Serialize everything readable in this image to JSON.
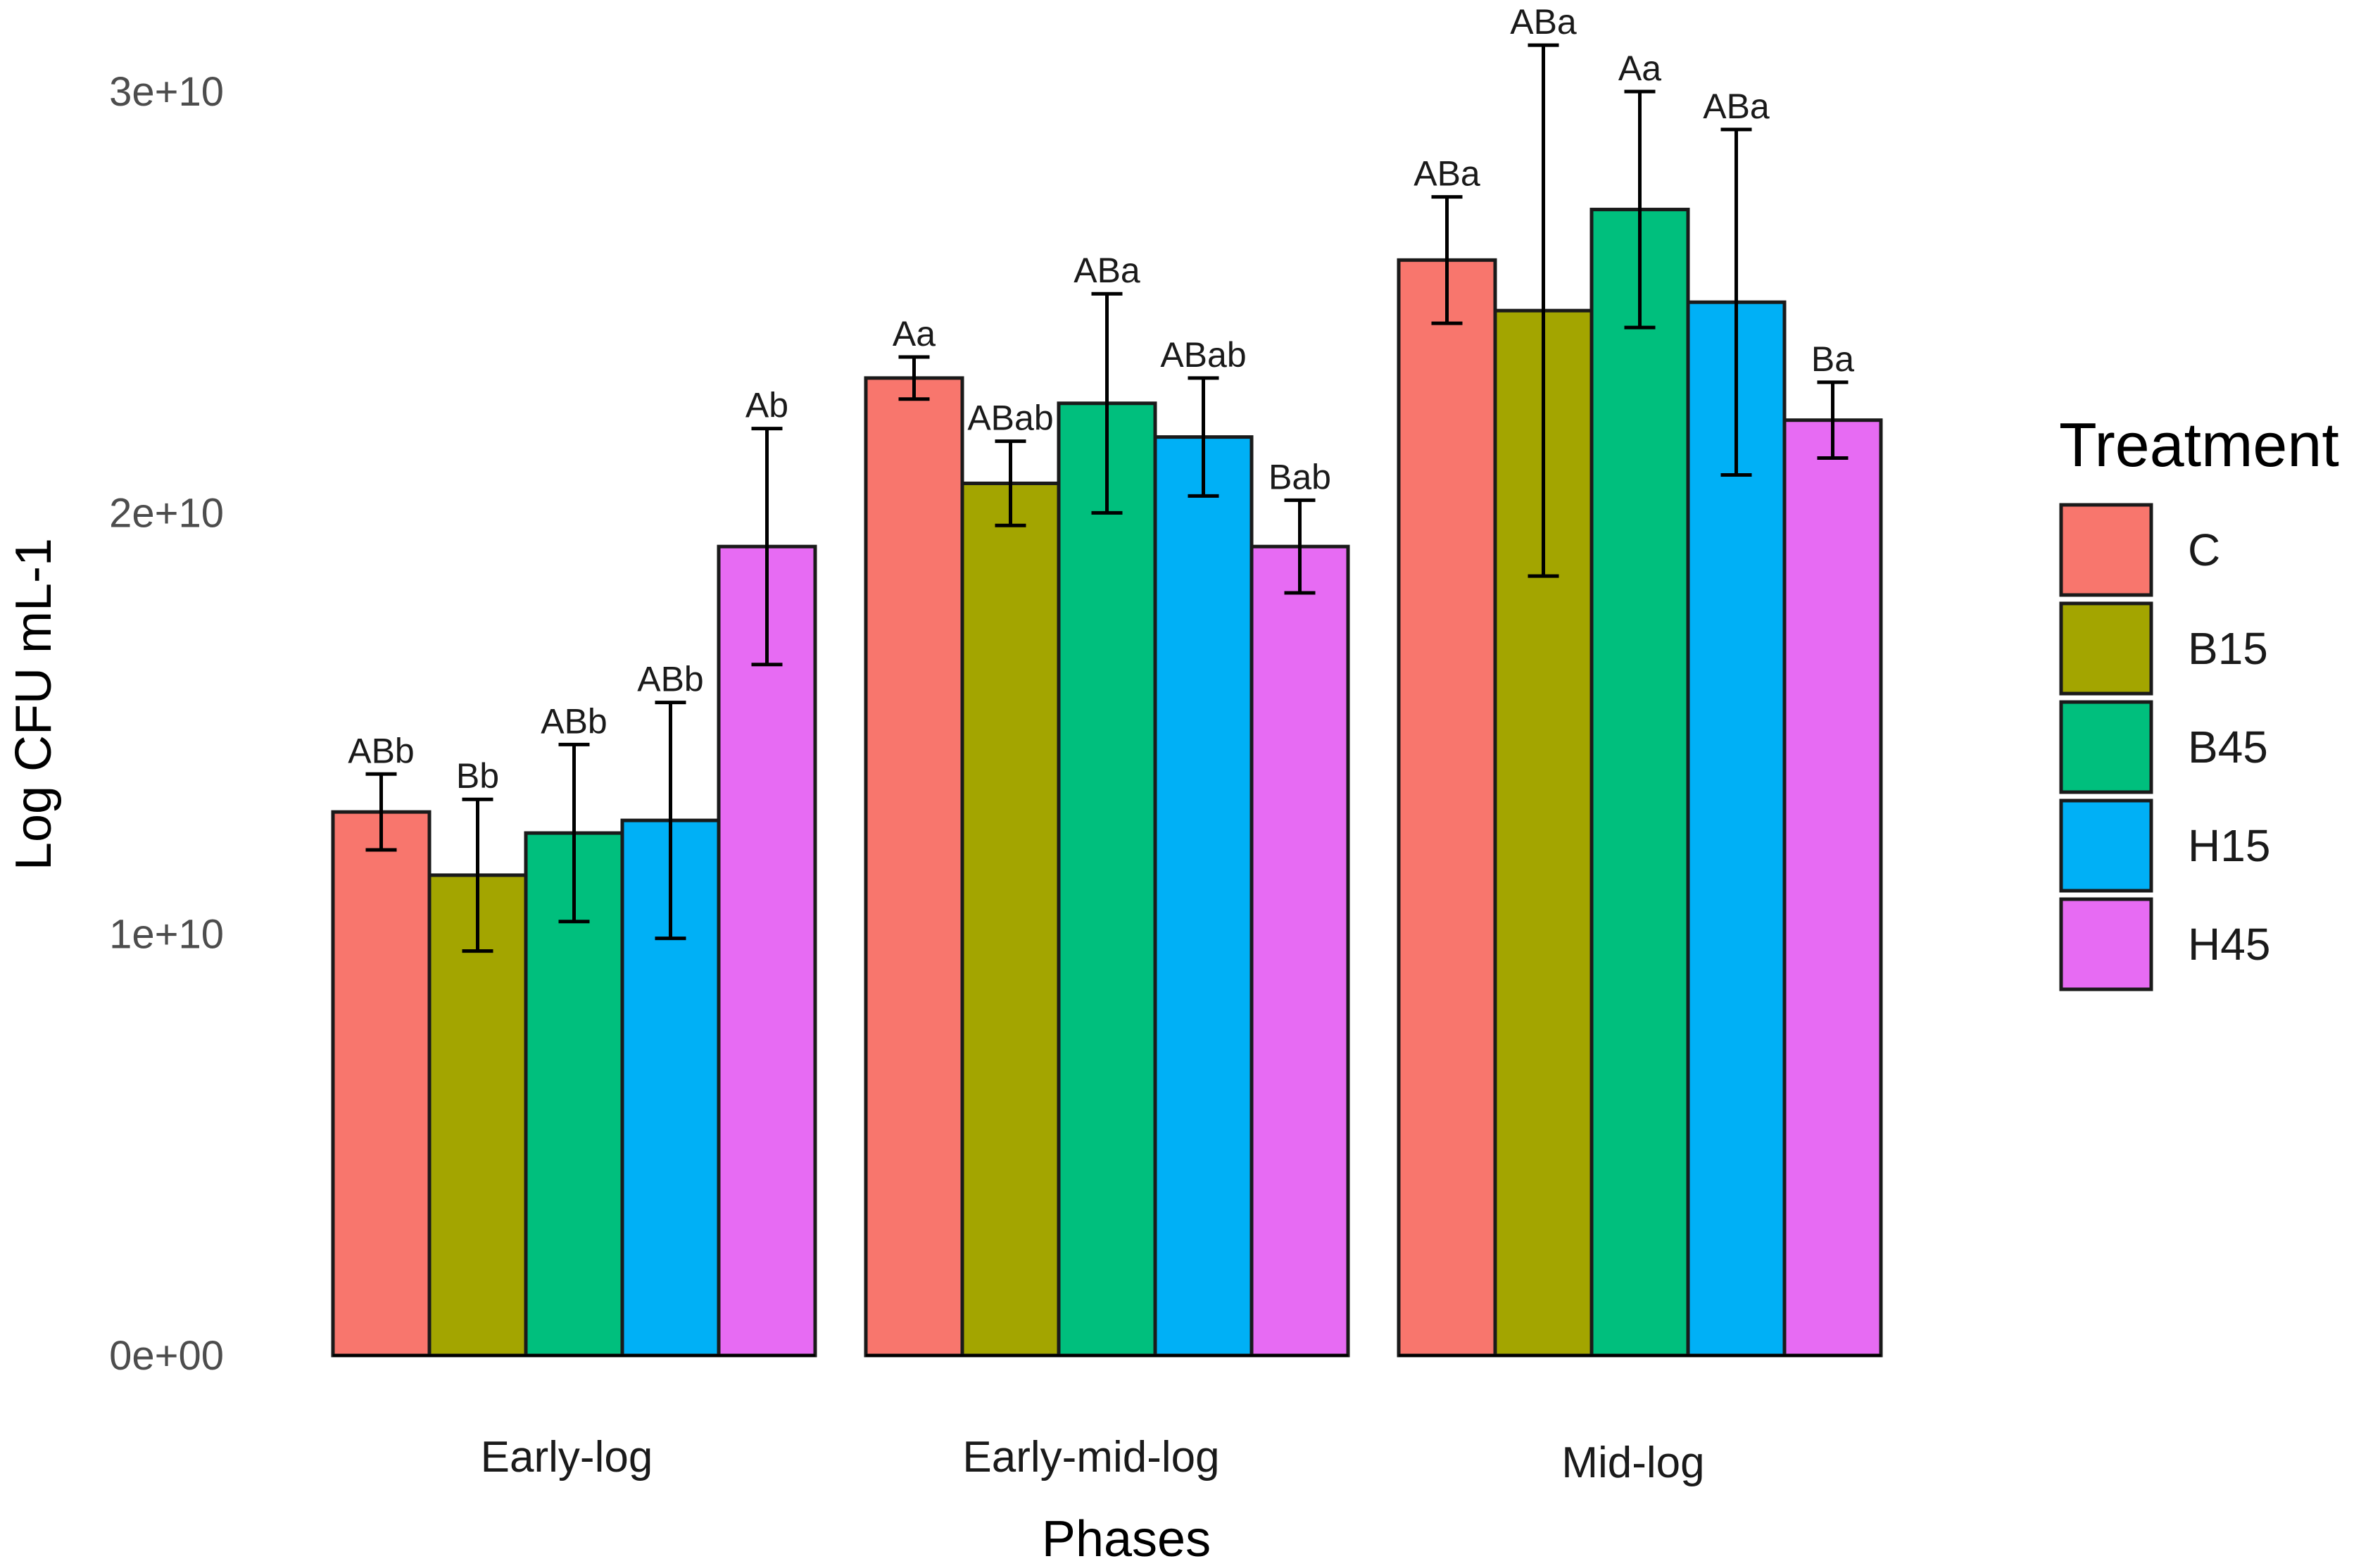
{
  "chart_data": {
    "type": "bar",
    "title": "",
    "xlabel": "Phases",
    "ylabel": "Log CFU mL-1",
    "ylim": [
      0,
      30000000000
    ],
    "yticks": [
      {
        "value": 0,
        "label": "0e+00"
      },
      {
        "value": 10000000000,
        "label": "1e+10"
      },
      {
        "value": 20000000000,
        "label": "2e+10"
      },
      {
        "value": 30000000000,
        "label": "3e+10"
      }
    ],
    "grid": false,
    "legend_position": "right",
    "legend_title": "Treatment",
    "categories": [
      "Early-log",
      "Early-mid-log",
      "Mid-log"
    ],
    "series": [
      {
        "name": "C",
        "color": "#F8766D",
        "values": [
          12900000000,
          23200000000,
          26000000000
        ],
        "errors": [
          900000000,
          500000000,
          1500000000
        ],
        "labels": [
          "ABb",
          "Aa",
          "ABa"
        ]
      },
      {
        "name": "B15",
        "color": "#A3A500",
        "values": [
          11400000000,
          20700000000,
          24800000000
        ],
        "errors": [
          1800000000,
          1000000000,
          6300000000
        ],
        "labels": [
          "Bb",
          "ABab",
          "ABa"
        ]
      },
      {
        "name": "B45",
        "color": "#00BF7D",
        "values": [
          12400000000,
          22600000000,
          27200000000
        ],
        "errors": [
          2100000000,
          2600000000,
          2800000000
        ],
        "labels": [
          "ABb",
          "ABa",
          "Aa"
        ]
      },
      {
        "name": "H15",
        "color": "#00B0F6",
        "values": [
          12700000000,
          21800000000,
          25000000000
        ],
        "errors": [
          2800000000,
          1400000000,
          4100000000
        ],
        "labels": [
          "ABb",
          "ABab",
          "ABa"
        ]
      },
      {
        "name": "H45",
        "color": "#E76BF3",
        "values": [
          19200000000,
          19200000000,
          22200000000
        ],
        "errors": [
          2800000000,
          1100000000,
          900000000
        ],
        "labels": [
          "Ab",
          "Bab",
          "Ba"
        ]
      }
    ]
  }
}
